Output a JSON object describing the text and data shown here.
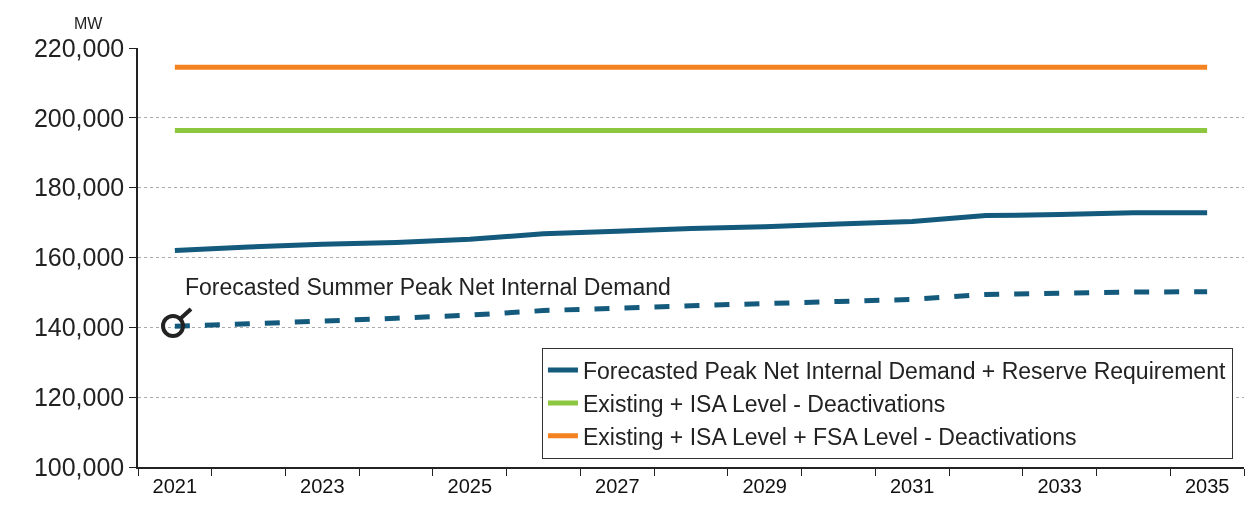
{
  "chart_data": {
    "type": "line",
    "ylabel": "MW",
    "categories": [
      "2021",
      null,
      "2023",
      null,
      "2025",
      null,
      "2027",
      null,
      "2029",
      null,
      "2031",
      null,
      "2033",
      null,
      "2035"
    ],
    "ylim": [
      100000,
      220000
    ],
    "yticks": [
      {
        "value": 100000,
        "label": "100,000"
      },
      {
        "value": 120000,
        "label": "120,000"
      },
      {
        "value": 140000,
        "label": "140,000"
      },
      {
        "value": 160000,
        "label": "160,000"
      },
      {
        "value": 180000,
        "label": "180,000"
      },
      {
        "value": 200000,
        "label": "200,000"
      },
      {
        "value": 220000,
        "label": "220,000"
      }
    ],
    "grid": "y",
    "legend": "bottom right",
    "marker": "none",
    "series": [
      {
        "name": "Forecasted Peak Net Internal Demand + Reserve Requirement",
        "color": "#135a7c",
        "values": [
          162000,
          163000,
          163800,
          164300,
          165200,
          166800,
          167500,
          168300,
          168800,
          169600,
          170300,
          172000,
          172300,
          172800,
          172800
        ]
      },
      {
        "name": "Existing + ISA Level - Deactivations",
        "color": "#8dc63f",
        "values": [
          196400,
          196400,
          196400,
          196400,
          196400,
          196400,
          196400,
          196400,
          196400,
          196400,
          196400,
          196400,
          196400,
          196400,
          196400
        ]
      },
      {
        "name": "Existing + ISA Level + FSA Level - Deactivations",
        "color": "#f58220",
        "values": [
          214500,
          214500,
          214500,
          214500,
          214500,
          214500,
          214500,
          214500,
          214500,
          214500,
          214500,
          214500,
          214500,
          214500,
          214500
        ]
      },
      {
        "name": "Forecasted Summer Peak Net Internal Demand",
        "color": "#135a7c",
        "line_style": "dashed",
        "values": [
          140300,
          141000,
          141800,
          142600,
          143500,
          144800,
          145500,
          146200,
          146800,
          147400,
          148000,
          149400,
          149800,
          150100,
          150200
        ]
      }
    ]
  }
}
